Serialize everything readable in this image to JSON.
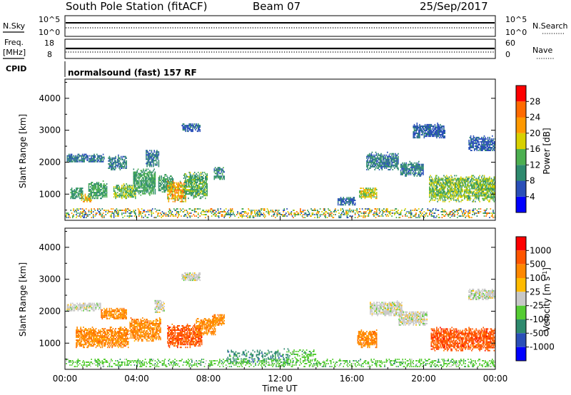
{
  "header": {
    "title": "South Pole Station (fitACF)",
    "beam": "Beam 07",
    "date": "25/Sep/2017"
  },
  "nsky_panel": {
    "left_label": "N.Sky",
    "right_label": "N.Search",
    "left_ticks": [
      "10^5",
      "10^0"
    ],
    "right_ticks": [
      "10^5",
      "10^0"
    ]
  },
  "freq_panel": {
    "left_label_1": "Freq.",
    "left_label_2": "[MHz]",
    "right_label": "Nave",
    "left_ticks": [
      18,
      8
    ],
    "right_ticks": [
      60,
      0
    ]
  },
  "cpid": {
    "label": "CPID",
    "value": "normalsound (fast) 157 RF"
  },
  "colors": {
    "power_scale": [
      "#0000ff",
      "#2a4fb8",
      "#2e8a6e",
      "#4caf50",
      "#d8d000",
      "#ff9900",
      "#ff6a00",
      "#ff0000"
    ],
    "velocity_scale": [
      "#ff0000",
      "#ff5500",
      "#ff8800",
      "#ffbb00",
      "#c8c8c8",
      "#55cc33",
      "#2e8a6e",
      "#2a4fb8",
      "#0000ff"
    ]
  },
  "chart_data": [
    {
      "type": "heatmap",
      "panel": "power",
      "ylabel": "Slant Range [km]",
      "xlabel": "",
      "ylim": [
        180,
        4600
      ],
      "yticks": [
        1000,
        2000,
        3000,
        4000
      ],
      "colorbar_label": "Power [dB]",
      "colorbar_ticks": [
        4,
        8,
        12,
        16,
        20,
        24,
        28
      ],
      "color_range": [
        0,
        31
      ],
      "patches": [
        {
          "t": [
            0.1,
            2.2
          ],
          "r": [
            1950,
            2250
          ],
          "v": [
            6,
            10
          ]
        },
        {
          "t": [
            0.3,
            1.0
          ],
          "r": [
            800,
            1200
          ],
          "v": [
            8,
            14
          ]
        },
        {
          "t": [
            0.9,
            1.5
          ],
          "r": [
            700,
            1000
          ],
          "v": [
            14,
            26
          ]
        },
        {
          "t": [
            1.3,
            2.3
          ],
          "r": [
            800,
            1400
          ],
          "v": [
            8,
            16
          ]
        },
        {
          "t": [
            2.4,
            3.4
          ],
          "r": [
            1700,
            2200
          ],
          "v": [
            6,
            12
          ]
        },
        {
          "t": [
            2.7,
            3.9
          ],
          "r": [
            800,
            1300
          ],
          "v": [
            10,
            20
          ]
        },
        {
          "t": [
            3.8,
            5.0
          ],
          "r": [
            900,
            1800
          ],
          "v": [
            8,
            16
          ]
        },
        {
          "t": [
            4.5,
            5.2
          ],
          "r": [
            1800,
            2400
          ],
          "v": [
            6,
            12
          ]
        },
        {
          "t": [
            5.2,
            6.0
          ],
          "r": [
            1000,
            1600
          ],
          "v": [
            8,
            14
          ]
        },
        {
          "t": [
            5.7,
            6.7
          ],
          "r": [
            700,
            1400
          ],
          "v": [
            14,
            28
          ]
        },
        {
          "t": [
            6.6,
            7.9
          ],
          "r": [
            800,
            1700
          ],
          "v": [
            8,
            18
          ]
        },
        {
          "t": [
            8.3,
            8.9
          ],
          "r": [
            1400,
            1850
          ],
          "v": [
            6,
            14
          ]
        },
        {
          "t": [
            6.5,
            7.5
          ],
          "r": [
            2900,
            3200
          ],
          "v": [
            5,
            9
          ]
        },
        {
          "t": [
            15.2,
            16.2
          ],
          "r": [
            600,
            900
          ],
          "v": [
            5,
            10
          ]
        },
        {
          "t": [
            16.4,
            17.4
          ],
          "r": [
            800,
            1200
          ],
          "v": [
            12,
            22
          ]
        },
        {
          "t": [
            16.8,
            18.6
          ],
          "r": [
            1700,
            2300
          ],
          "v": [
            6,
            12
          ]
        },
        {
          "t": [
            18.7,
            20.0
          ],
          "r": [
            1500,
            2000
          ],
          "v": [
            6,
            12
          ]
        },
        {
          "t": [
            19.4,
            21.2
          ],
          "r": [
            2700,
            3200
          ],
          "v": [
            5,
            9
          ]
        },
        {
          "t": [
            20.3,
            24.0
          ],
          "r": [
            700,
            1600
          ],
          "v": [
            10,
            20
          ]
        },
        {
          "t": [
            22.5,
            24.0
          ],
          "r": [
            2300,
            2800
          ],
          "v": [
            5,
            9
          ]
        },
        {
          "t": [
            0.0,
            24.0
          ],
          "r": [
            200,
            550
          ],
          "v": [
            4,
            26
          ],
          "sparse": true
        }
      ]
    },
    {
      "type": "heatmap",
      "panel": "velocity",
      "ylabel": "Slant Range [km]",
      "xlabel": "Time UT",
      "ylim": [
        180,
        4600
      ],
      "yticks": [
        1000,
        2000,
        3000,
        4000
      ],
      "xticks": [
        "00:00",
        "04:00",
        "08:00",
        "12:00",
        "16:00",
        "20:00",
        "00:00"
      ],
      "xlim_hours": [
        0,
        24
      ],
      "colorbar_label": "Velocity [m s^-1]",
      "colorbar_ticks": [
        "1000",
        "500",
        "100",
        "25",
        "-25",
        "-100",
        "-500",
        "-1000"
      ],
      "patches": [
        {
          "t": [
            0.1,
            2.0
          ],
          "r": [
            1950,
            2250
          ],
          "c": 4
        },
        {
          "t": [
            0.6,
            3.5
          ],
          "r": [
            800,
            1500
          ],
          "c": 2
        },
        {
          "t": [
            2.0,
            3.4
          ],
          "r": [
            1700,
            2100
          ],
          "c": 2
        },
        {
          "t": [
            3.6,
            5.3
          ],
          "r": [
            1000,
            1800
          ],
          "c": 2
        },
        {
          "t": [
            5.0,
            5.5
          ],
          "r": [
            1900,
            2350
          ],
          "c": 4
        },
        {
          "t": [
            5.7,
            7.6
          ],
          "r": [
            800,
            1600
          ],
          "c": 1
        },
        {
          "t": [
            7.3,
            8.4
          ],
          "r": [
            1200,
            1800
          ],
          "c": 2
        },
        {
          "t": [
            8.2,
            8.9
          ],
          "r": [
            1500,
            1900
          ],
          "c": 2
        },
        {
          "t": [
            6.5,
            7.5
          ],
          "r": [
            2900,
            3200
          ],
          "c": 4
        },
        {
          "t": [
            9.0,
            12.5
          ],
          "r": [
            300,
            800
          ],
          "c": 6,
          "sparse": true
        },
        {
          "t": [
            12.5,
            14.0
          ],
          "r": [
            400,
            800
          ],
          "c": 5,
          "sparse": true
        },
        {
          "t": [
            16.3,
            17.4
          ],
          "r": [
            800,
            1400
          ],
          "c": 2
        },
        {
          "t": [
            17.0,
            18.8
          ],
          "r": [
            1800,
            2300
          ],
          "c": 4
        },
        {
          "t": [
            18.6,
            20.2
          ],
          "r": [
            1500,
            2000
          ],
          "c": 4
        },
        {
          "t": [
            20.4,
            24.0
          ],
          "r": [
            700,
            1500
          ],
          "c": 1
        },
        {
          "t": [
            22.5,
            24.0
          ],
          "r": [
            2300,
            2700
          ],
          "c": 4
        },
        {
          "t": [
            0.0,
            24.0
          ],
          "r": [
            200,
            500
          ],
          "c": 5,
          "sparse": true
        }
      ]
    }
  ]
}
